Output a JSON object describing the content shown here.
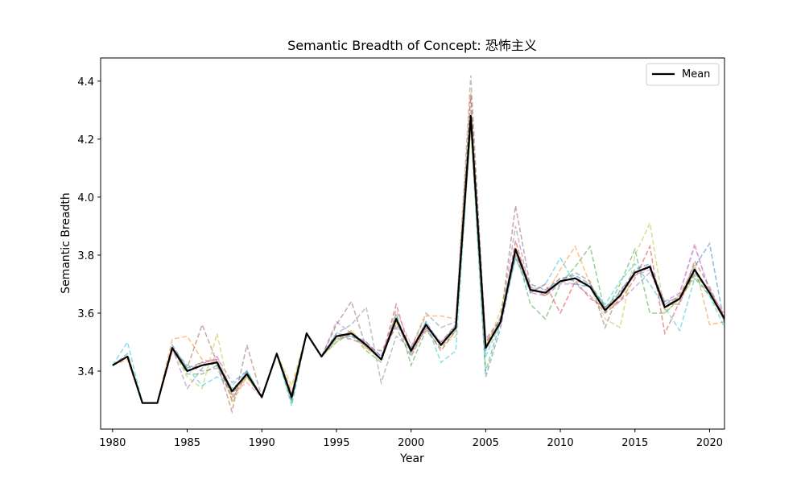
{
  "chart_data": {
    "type": "line",
    "title": "Semantic Breadth of Concept: 恐怖主义",
    "xlabel": "Year",
    "ylabel": "Semantic Breadth",
    "xlim": [
      1979.2,
      2021
    ],
    "ylim": [
      3.2,
      4.48
    ],
    "xticks": [
      1980,
      1985,
      1990,
      1995,
      2000,
      2005,
      2010,
      2015,
      2020
    ],
    "yticks": [
      3.4,
      3.6,
      3.8,
      4.0,
      4.2,
      4.4
    ],
    "grid": false,
    "legend": {
      "position": "top-right",
      "entries": [
        "Mean"
      ]
    },
    "x": [
      1980,
      1981,
      1982,
      1983,
      1984,
      1985,
      1986,
      1987,
      1988,
      1989,
      1990,
      1991,
      1992,
      1993,
      1994,
      1995,
      1996,
      1997,
      1998,
      1999,
      2000,
      2001,
      2002,
      2003,
      2004,
      2005,
      2006,
      2007,
      2008,
      2009,
      2010,
      2011,
      2012,
      2013,
      2014,
      2015,
      2016,
      2017,
      2018,
      2019,
      2020,
      2021
    ],
    "mean": {
      "name": "Mean",
      "color": "#000000",
      "values": [
        3.42,
        3.45,
        3.29,
        3.29,
        3.48,
        3.4,
        3.42,
        3.43,
        3.33,
        3.39,
        3.31,
        3.46,
        3.31,
        3.53,
        3.45,
        3.52,
        3.53,
        3.49,
        3.44,
        3.58,
        3.47,
        3.56,
        3.49,
        3.55,
        4.28,
        3.48,
        3.57,
        3.82,
        3.68,
        3.67,
        3.71,
        3.72,
        3.69,
        3.61,
        3.66,
        3.74,
        3.76,
        3.62,
        3.65,
        3.75,
        3.67,
        3.58
      ]
    },
    "series": [
      {
        "color": "#1f77b4",
        "values": [
          3.42,
          3.46,
          3.29,
          3.29,
          3.49,
          3.41,
          3.43,
          3.42,
          3.32,
          3.4,
          3.31,
          3.46,
          3.3,
          3.53,
          3.45,
          3.53,
          3.52,
          3.5,
          3.45,
          3.59,
          3.47,
          3.57,
          3.49,
          3.56,
          4.27,
          3.38,
          3.55,
          3.8,
          3.7,
          3.68,
          3.72,
          3.73,
          3.7,
          3.62,
          3.67,
          3.75,
          3.77,
          3.63,
          3.66,
          3.76,
          3.84,
          3.56
        ]
      },
      {
        "color": "#ff7f0e",
        "values": [
          3.42,
          3.44,
          3.29,
          3.29,
          3.51,
          3.52,
          3.44,
          3.43,
          3.32,
          3.38,
          3.31,
          3.46,
          3.33,
          3.53,
          3.45,
          3.51,
          3.54,
          3.48,
          3.44,
          3.57,
          3.48,
          3.59,
          3.59,
          3.58,
          4.36,
          3.49,
          3.58,
          3.83,
          3.69,
          3.66,
          3.75,
          3.83,
          3.7,
          3.6,
          3.65,
          3.74,
          3.76,
          3.62,
          3.66,
          3.77,
          3.56,
          3.57
        ]
      },
      {
        "color": "#2ca02c",
        "values": [
          3.42,
          3.45,
          3.29,
          3.29,
          3.48,
          3.39,
          3.39,
          3.42,
          3.34,
          3.38,
          3.31,
          3.46,
          3.29,
          3.53,
          3.45,
          3.5,
          3.53,
          3.47,
          3.43,
          3.6,
          3.42,
          3.54,
          3.48,
          3.54,
          4.24,
          3.4,
          3.57,
          3.82,
          3.63,
          3.58,
          3.7,
          3.76,
          3.83,
          3.6,
          3.7,
          3.82,
          3.6,
          3.6,
          3.65,
          3.73,
          3.66,
          3.58
        ]
      },
      {
        "color": "#d62728",
        "values": [
          3.42,
          3.45,
          3.29,
          3.29,
          3.47,
          3.4,
          3.43,
          3.44,
          3.3,
          3.39,
          3.31,
          3.46,
          3.31,
          3.53,
          3.45,
          3.52,
          3.51,
          3.49,
          3.44,
          3.63,
          3.46,
          3.55,
          3.47,
          3.54,
          4.25,
          3.5,
          3.56,
          3.85,
          3.67,
          3.7,
          3.6,
          3.71,
          3.65,
          3.62,
          3.64,
          3.72,
          3.83,
          3.53,
          3.64,
          3.74,
          3.68,
          3.59
        ]
      },
      {
        "color": "#9467bd",
        "values": [
          3.42,
          3.45,
          3.29,
          3.29,
          3.48,
          3.34,
          3.41,
          3.45,
          3.36,
          3.4,
          3.31,
          3.46,
          3.32,
          3.53,
          3.45,
          3.57,
          3.53,
          3.5,
          3.45,
          3.56,
          3.48,
          3.56,
          3.5,
          3.55,
          4.3,
          3.5,
          3.58,
          3.9,
          3.67,
          3.66,
          3.7,
          3.7,
          3.66,
          3.6,
          3.64,
          3.69,
          3.74,
          3.64,
          3.67,
          3.83,
          3.68,
          3.57
        ]
      },
      {
        "color": "#8c564b",
        "values": [
          3.42,
          3.45,
          3.29,
          3.29,
          3.48,
          3.41,
          3.56,
          3.43,
          3.26,
          3.49,
          3.31,
          3.46,
          3.31,
          3.53,
          3.45,
          3.56,
          3.64,
          3.48,
          3.47,
          3.55,
          3.45,
          3.55,
          3.5,
          3.56,
          4.35,
          3.51,
          3.58,
          3.97,
          3.69,
          3.66,
          3.71,
          3.74,
          3.71,
          3.55,
          3.68,
          3.73,
          3.76,
          3.63,
          3.63,
          3.78,
          3.69,
          3.58
        ]
      },
      {
        "color": "#e377c2",
        "values": [
          3.42,
          3.45,
          3.29,
          3.29,
          3.48,
          3.4,
          3.42,
          3.45,
          3.33,
          3.36,
          3.31,
          3.46,
          3.32,
          3.53,
          3.45,
          3.52,
          3.52,
          3.5,
          3.44,
          3.61,
          3.49,
          3.54,
          3.5,
          3.55,
          4.28,
          3.49,
          3.56,
          3.8,
          3.69,
          3.68,
          3.71,
          3.7,
          3.69,
          3.61,
          3.66,
          3.73,
          3.75,
          3.61,
          3.67,
          3.84,
          3.67,
          3.6
        ]
      },
      {
        "color": "#7f7f7f",
        "values": [
          3.42,
          3.45,
          3.29,
          3.29,
          3.48,
          3.42,
          3.4,
          3.41,
          3.31,
          3.4,
          3.31,
          3.46,
          3.3,
          3.53,
          3.45,
          3.53,
          3.56,
          3.62,
          3.36,
          3.52,
          3.48,
          3.6,
          3.55,
          3.57,
          4.42,
          3.47,
          3.59,
          3.79,
          3.68,
          3.67,
          3.72,
          3.71,
          3.7,
          3.62,
          3.66,
          3.74,
          3.76,
          3.64,
          3.65,
          3.74,
          3.67,
          3.58
        ]
      },
      {
        "color": "#bcbd22",
        "values": [
          3.42,
          3.45,
          3.29,
          3.29,
          3.48,
          3.38,
          3.34,
          3.53,
          3.29,
          3.38,
          3.31,
          3.46,
          3.35,
          3.53,
          3.45,
          3.5,
          3.54,
          3.48,
          3.44,
          3.57,
          3.47,
          3.56,
          3.49,
          3.52,
          4.24,
          3.48,
          3.61,
          3.81,
          3.68,
          3.67,
          3.71,
          3.72,
          3.69,
          3.58,
          3.55,
          3.8,
          3.91,
          3.6,
          3.65,
          3.72,
          3.67,
          3.57
        ]
      },
      {
        "color": "#17becf",
        "values": [
          3.42,
          3.5,
          3.29,
          3.29,
          3.48,
          3.41,
          3.35,
          3.38,
          3.35,
          3.4,
          3.31,
          3.46,
          3.28,
          3.53,
          3.45,
          3.51,
          3.52,
          3.49,
          3.44,
          3.58,
          3.46,
          3.57,
          3.43,
          3.47,
          4.26,
          3.45,
          3.57,
          3.79,
          3.67,
          3.7,
          3.79,
          3.7,
          3.69,
          3.63,
          3.71,
          3.77,
          3.7,
          3.62,
          3.54,
          3.72,
          3.66,
          3.55
        ]
      }
    ]
  }
}
